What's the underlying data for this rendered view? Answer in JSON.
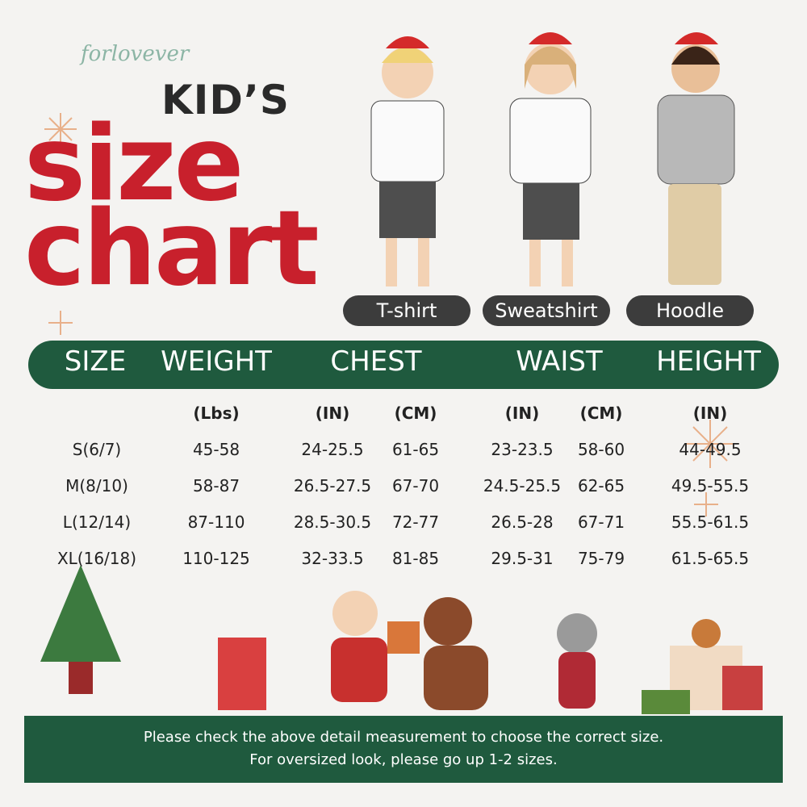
{
  "brand": "forlovever",
  "title": {
    "line1": "KID’S",
    "line2": "size",
    "line3": "chart"
  },
  "styles": [
    "T-shirt",
    "Sweatshirt",
    "Hoodle"
  ],
  "table": {
    "header": [
      "SIZE",
      "WEIGHT",
      "CHEST",
      "WAIST",
      "HEIGHT"
    ],
    "units": [
      "(Lbs)",
      "(IN)",
      "(CM)",
      "(IN)",
      "(CM)",
      "(IN)"
    ],
    "rows": [
      [
        "S(6/7)",
        "45-58",
        "24-25.5",
        "61-65",
        "23-23.5",
        "58-60",
        "44-49.5"
      ],
      [
        "M(8/10)",
        "58-87",
        "26.5-27.5",
        "67-70",
        "24.5-25.5",
        "62-65",
        "49.5-55.5"
      ],
      [
        "L(12/14)",
        "87-110",
        "28.5-30.5",
        "72-77",
        "26.5-28",
        "67-71",
        "55.5-61.5"
      ],
      [
        "XL(16/18)",
        "110-125",
        "32-33.5",
        "81-85",
        "29.5-31",
        "75-79",
        "61.5-65.5"
      ]
    ]
  },
  "footer": [
    "Please check the above detail measurement to choose the correct size.",
    "For oversized look, please go up 1-2 sizes."
  ]
}
